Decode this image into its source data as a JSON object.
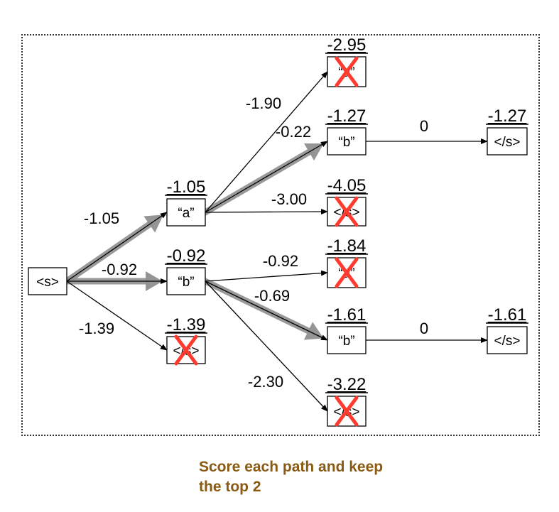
{
  "diagram": {
    "nodes": [
      {
        "id": "s0",
        "label": "<s>",
        "score": "",
        "pruned": false
      },
      {
        "id": "a1",
        "label": "“a”",
        "score": "-1.05",
        "pruned": false
      },
      {
        "id": "b1",
        "label": "“b”",
        "score": "-0.92",
        "pruned": false
      },
      {
        "id": "e1",
        "label": "</s>",
        "score": "-1.39",
        "pruned": true
      },
      {
        "id": "aa",
        "label": "“a”",
        "score": "-2.95",
        "pruned": true
      },
      {
        "id": "ab",
        "label": "“b”",
        "score": "-1.27",
        "pruned": false
      },
      {
        "id": "ae",
        "label": "</s>",
        "score": "-4.05",
        "pruned": true
      },
      {
        "id": "ba",
        "label": "“a”",
        "score": "-1.84",
        "pruned": true
      },
      {
        "id": "bb",
        "label": "“b”",
        "score": "-1.61",
        "pruned": false
      },
      {
        "id": "be",
        "label": "</s>",
        "score": "-3.22",
        "pruned": true
      },
      {
        "id": "abe",
        "label": "</s>",
        "score": "-1.27",
        "pruned": false
      },
      {
        "id": "bbe",
        "label": "</s>",
        "score": "-1.61",
        "pruned": false
      }
    ],
    "edges": [
      {
        "from": "s0",
        "to": "a1",
        "label": "-1.05",
        "highlight": true
      },
      {
        "from": "s0",
        "to": "b1",
        "label": "-0.92",
        "highlight": true
      },
      {
        "from": "s0",
        "to": "e1",
        "label": "-1.39",
        "highlight": false
      },
      {
        "from": "a1",
        "to": "aa",
        "label": "-1.90",
        "highlight": false
      },
      {
        "from": "a1",
        "to": "ab",
        "label": "-0.22",
        "highlight": true
      },
      {
        "from": "a1",
        "to": "ae",
        "label": "-3.00",
        "highlight": false
      },
      {
        "from": "b1",
        "to": "ba",
        "label": "-0.92",
        "highlight": false
      },
      {
        "from": "b1",
        "to": "bb",
        "label": "-0.69",
        "highlight": true
      },
      {
        "from": "b1",
        "to": "be",
        "label": "-2.30",
        "highlight": false
      },
      {
        "from": "ab",
        "to": "abe",
        "label": "0",
        "highlight": false
      },
      {
        "from": "bb",
        "to": "bbe",
        "label": "0",
        "highlight": false
      }
    ],
    "colors": {
      "prune_mark": "#ff3b30",
      "highlight_arrow": "#8f8f8f",
      "line": "#000000",
      "caption": "#8a5a12"
    }
  },
  "caption": {
    "line1": "Score each path and keep",
    "line2": "the top 2"
  }
}
